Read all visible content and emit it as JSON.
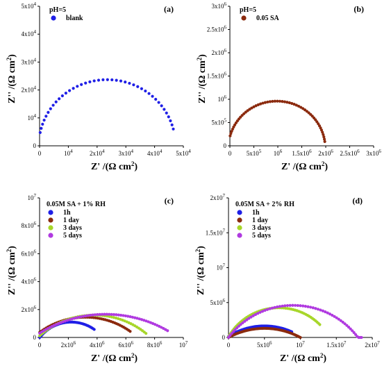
{
  "chart_data": [
    {
      "type": "scatter",
      "panel": "(a)",
      "condition": "pH=5",
      "series": [
        {
          "name": "blank",
          "color": "#1f1fe6",
          "center": [
            23500,
            -100
          ],
          "radius": 23800,
          "x_start": 200,
          "x_end": 46500,
          "n": 42
        }
      ],
      "xticks": [
        {
          "v": 0,
          "l": "0"
        },
        {
          "v": 10000,
          "l": "10^4"
        },
        {
          "v": 20000,
          "l": "2x10^4"
        },
        {
          "v": 30000,
          "l": "3x10^4"
        },
        {
          "v": 40000,
          "l": "4x10^4"
        },
        {
          "v": 50000,
          "l": "5x10^4"
        }
      ],
      "yticks": [
        {
          "v": 0,
          "l": "0"
        },
        {
          "v": 10000,
          "l": "10^4"
        },
        {
          "v": 20000,
          "l": "2x10^4"
        },
        {
          "v": 30000,
          "l": "3x10^4"
        },
        {
          "v": 40000,
          "l": "4x10^4"
        },
        {
          "v": 50000,
          "l": "5x10^4"
        }
      ],
      "xlim": [
        0,
        50000
      ],
      "ylim": [
        0,
        50000
      ],
      "xlabel": "Z' /(Ω cm2)",
      "ylabel": "Z'' /(Ω cm2)",
      "grid": false,
      "legend": "top-left"
    },
    {
      "type": "scatter",
      "panel": "(b)",
      "condition": "pH=5",
      "series": [
        {
          "name": "0.05 SA",
          "color": "#8b2a0e",
          "center": [
            980000,
            -50000
          ],
          "radius": 1010000,
          "x_start": 5000,
          "x_end": 1980000,
          "n": 55
        }
      ],
      "xticks": [
        {
          "v": 0,
          "l": "0"
        },
        {
          "v": 500000,
          "l": "5x10^5"
        },
        {
          "v": 1000000,
          "l": "10^6"
        },
        {
          "v": 1500000,
          "l": "1.5x10^6"
        },
        {
          "v": 2000000,
          "l": "2x10^6"
        },
        {
          "v": 2500000,
          "l": "2.5x10^6"
        },
        {
          "v": 3000000,
          "l": "3x10^6"
        }
      ],
      "yticks": [
        {
          "v": 0,
          "l": "0"
        },
        {
          "v": 500000,
          "l": "5x10^5"
        },
        {
          "v": 1000000,
          "l": "10^6"
        },
        {
          "v": 1500000,
          "l": "1.5x10^6"
        },
        {
          "v": 2000000,
          "l": "2x10^6"
        },
        {
          "v": 2500000,
          "l": "2.5x10^6"
        },
        {
          "v": 3000000,
          "l": "3x10^6"
        }
      ],
      "xlim": [
        0,
        3000000
      ],
      "ylim": [
        0,
        3000000
      ],
      "xlabel": "Z' /(Ω cm2)",
      "ylabel": "Z'' /(Ω cm2)",
      "grid": false,
      "legend": "top-left"
    },
    {
      "type": "scatter",
      "panel": "(c)",
      "condition": "0.05M SA + 1% RH",
      "series": [
        {
          "name": "1h",
          "color": "#1f1fe6",
          "center": [
            2200000,
            -1600000
          ],
          "radius": 2700000,
          "x_start": 10000,
          "x_end": 3800000,
          "n": 45
        },
        {
          "name": "1 day",
          "color": "#8b2a0e",
          "center": [
            3200000,
            -3800000
          ],
          "radius": 5250000,
          "x_start": 10000,
          "x_end": 6300000,
          "n": 50
        },
        {
          "name": "3 days",
          "color": "#a7d62a",
          "center": [
            3800000,
            -4000000
          ],
          "radius": 5600000,
          "x_start": 10000,
          "x_end": 7400000,
          "n": 52
        },
        {
          "name": "5 days",
          "color": "#b03ae0",
          "center": [
            4600000,
            -6800000
          ],
          "radius": 8460000,
          "x_start": 10000,
          "x_end": 8900000,
          "n": 58
        }
      ],
      "xticks": [
        {
          "v": 0,
          "l": "0"
        },
        {
          "v": 2000000,
          "l": "2x10^6"
        },
        {
          "v": 4000000,
          "l": "4x10^6"
        },
        {
          "v": 6000000,
          "l": "6x10^6"
        },
        {
          "v": 8000000,
          "l": "8x10^6"
        },
        {
          "v": 10000000,
          "l": "10^7"
        }
      ],
      "yticks": [
        {
          "v": 0,
          "l": "0"
        },
        {
          "v": 2000000,
          "l": "2x10^6"
        },
        {
          "v": 4000000,
          "l": "4x10^6"
        },
        {
          "v": 6000000,
          "l": "6x10^6"
        },
        {
          "v": 8000000,
          "l": "8x10^6"
        },
        {
          "v": 10000000,
          "l": "10^7"
        }
      ],
      "xlim": [
        0,
        10000000
      ],
      "ylim": [
        0,
        10000000
      ],
      "xlabel": "Z' /(Ω cm2)",
      "ylabel": "Z'' /(Ω cm2)",
      "grid": false,
      "legend": "top-left"
    },
    {
      "type": "scatter",
      "panel": "(d)",
      "condition": "0.05M SA + 2% RH",
      "series": [
        {
          "name": "1h",
          "color": "#1f1fe6",
          "center": [
            5000000,
            -7400000
          ],
          "radius": 9050000,
          "x_start": 10000,
          "x_end": 8800000,
          "n": 50
        },
        {
          "name": "1 day",
          "color": "#8b2a0e",
          "center": [
            5000000,
            -8900000
          ],
          "radius": 10200000,
          "x_start": 10000,
          "x_end": 10000000,
          "n": 52
        },
        {
          "name": "3 days",
          "color": "#a7d62a",
          "center": [
            7000000,
            -3700000
          ],
          "radius": 7950000,
          "x_start": 10000,
          "x_end": 12700000,
          "n": 56
        },
        {
          "name": "5 days",
          "color": "#b03ae0",
          "center": [
            9000000,
            -6500000
          ],
          "radius": 11100000,
          "x_start": 10000,
          "x_end": 18500000,
          "n": 62
        }
      ],
      "xticks": [
        {
          "v": 0,
          "l": "0"
        },
        {
          "v": 5000000,
          "l": "5x10^6"
        },
        {
          "v": 10000000,
          "l": "10^7"
        },
        {
          "v": 15000000,
          "l": "1.5x10^7"
        },
        {
          "v": 20000000,
          "l": "2x10^7"
        }
      ],
      "yticks": [
        {
          "v": 0,
          "l": "0"
        },
        {
          "v": 5000000,
          "l": "5x10^6"
        },
        {
          "v": 10000000,
          "l": "10^7"
        },
        {
          "v": 15000000,
          "l": "1.5x10^7"
        },
        {
          "v": 20000000,
          "l": "2x10^7"
        }
      ],
      "xlim": [
        0,
        20000000
      ],
      "ylim": [
        0,
        20000000
      ],
      "xlabel": "Z' /(Ω cm2)",
      "ylabel": "Z'' /(Ω cm2)",
      "grid": false,
      "legend": "top-left"
    }
  ]
}
